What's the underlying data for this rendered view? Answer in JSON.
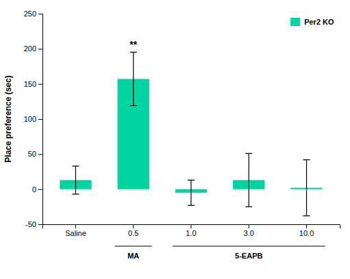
{
  "chart_data": {
    "type": "bar",
    "ylabel": "Place preference (sec)",
    "categories": [
      "Saline",
      "0.5",
      "1.0",
      "3.0",
      "10.0"
    ],
    "series": [
      {
        "name": "Per2 KO",
        "color": "#00D4A0",
        "values": [
          13,
          157,
          -5,
          13,
          2
        ],
        "errors": [
          20,
          38,
          18,
          38,
          40
        ]
      }
    ],
    "ylim": [
      -50,
      250
    ],
    "yticks": [
      -50,
      0,
      50,
      100,
      150,
      200,
      250
    ],
    "grid": false,
    "legend": "upper right",
    "annotations": [
      {
        "text": "**",
        "x": "0.5"
      },
      {
        "text": "MA",
        "span": [
          "0.5",
          "0.5"
        ]
      },
      {
        "text": "5-EAPB",
        "span": [
          "1.0",
          "10.0"
        ]
      }
    ]
  }
}
